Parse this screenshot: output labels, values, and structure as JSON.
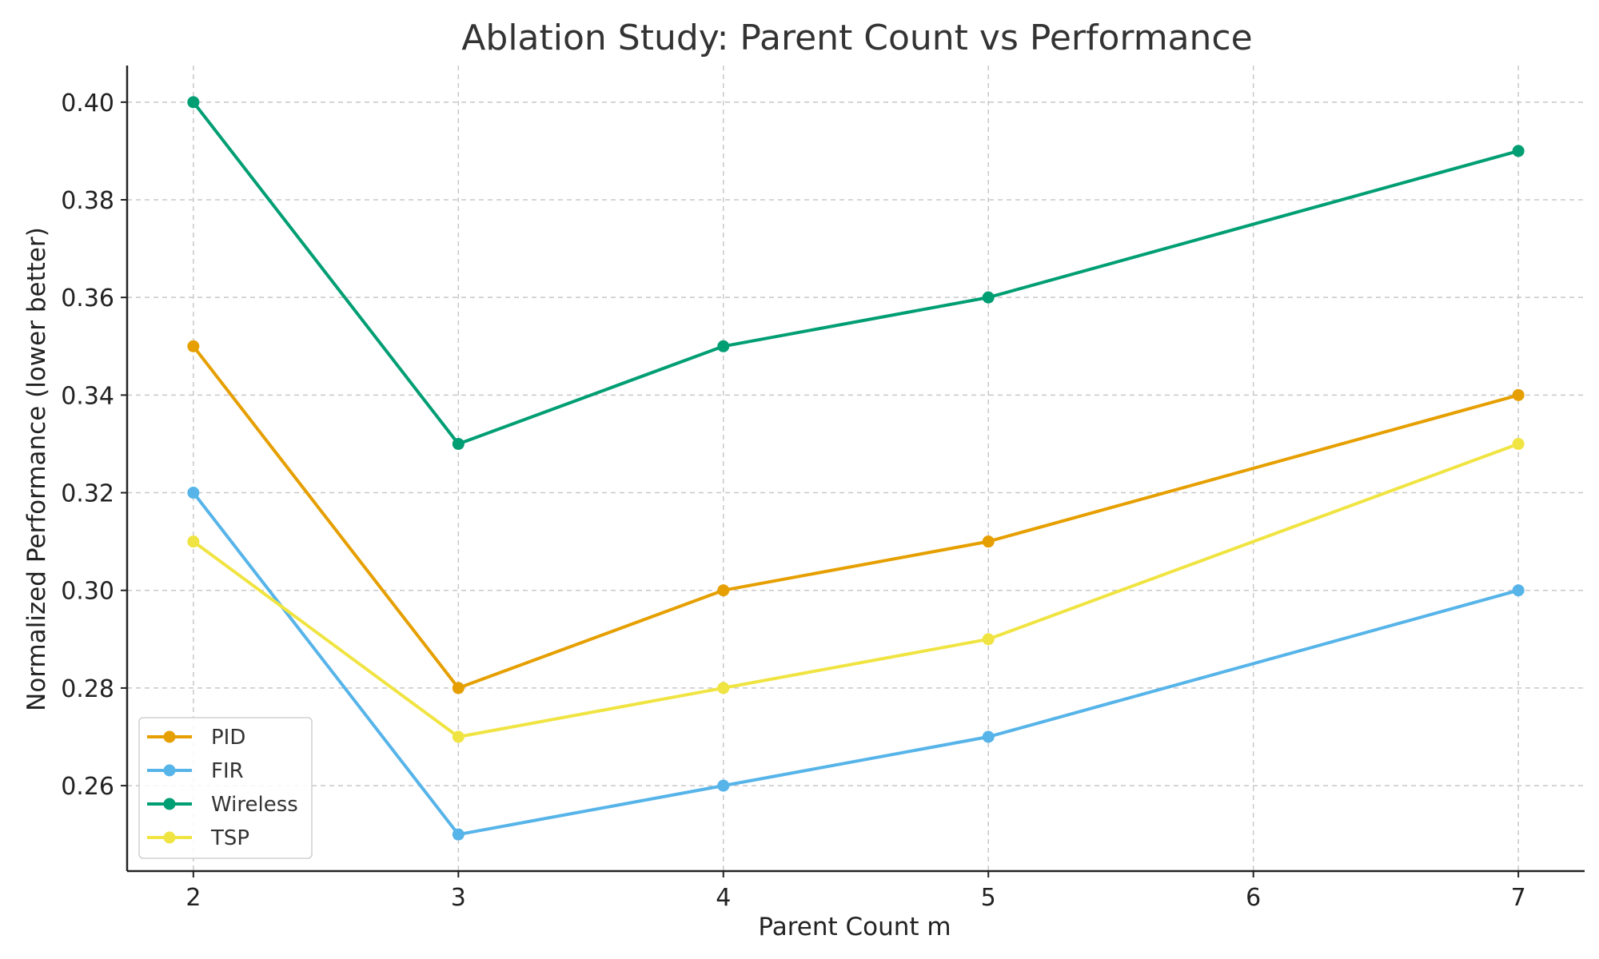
{
  "chart_data": {
    "type": "line",
    "title": "Ablation Study: Parent Count vs Performance",
    "xlabel": "Parent Count m",
    "ylabel": "Normalized Performance (lower better)",
    "x": [
      2,
      3,
      4,
      5,
      7
    ],
    "xticks": [
      2,
      3,
      4,
      5,
      6,
      7
    ],
    "xtick_labels": [
      "2",
      "3",
      "4",
      "5",
      "6",
      "7"
    ],
    "yticks": [
      0.26,
      0.28,
      0.3,
      0.32,
      0.34,
      0.36,
      0.38,
      0.4
    ],
    "ytick_labels": [
      "0.26",
      "0.28",
      "0.30",
      "0.32",
      "0.34",
      "0.36",
      "0.38",
      "0.40"
    ],
    "xlim": [
      1.75,
      7.25
    ],
    "ylim": [
      0.2425,
      0.4075
    ],
    "grid": true,
    "legend_position": "lower-left",
    "series": [
      {
        "name": "PID",
        "color": "#E69F00",
        "values": [
          0.35,
          0.28,
          0.3,
          0.31,
          0.34
        ]
      },
      {
        "name": "FIR",
        "color": "#56B4E9",
        "values": [
          0.32,
          0.25,
          0.26,
          0.27,
          0.3
        ]
      },
      {
        "name": "Wireless",
        "color": "#009E73",
        "values": [
          0.4,
          0.33,
          0.35,
          0.36,
          0.39
        ]
      },
      {
        "name": "TSP",
        "color": "#F0E442",
        "values": [
          0.31,
          0.27,
          0.28,
          0.29,
          0.33
        ]
      }
    ]
  }
}
